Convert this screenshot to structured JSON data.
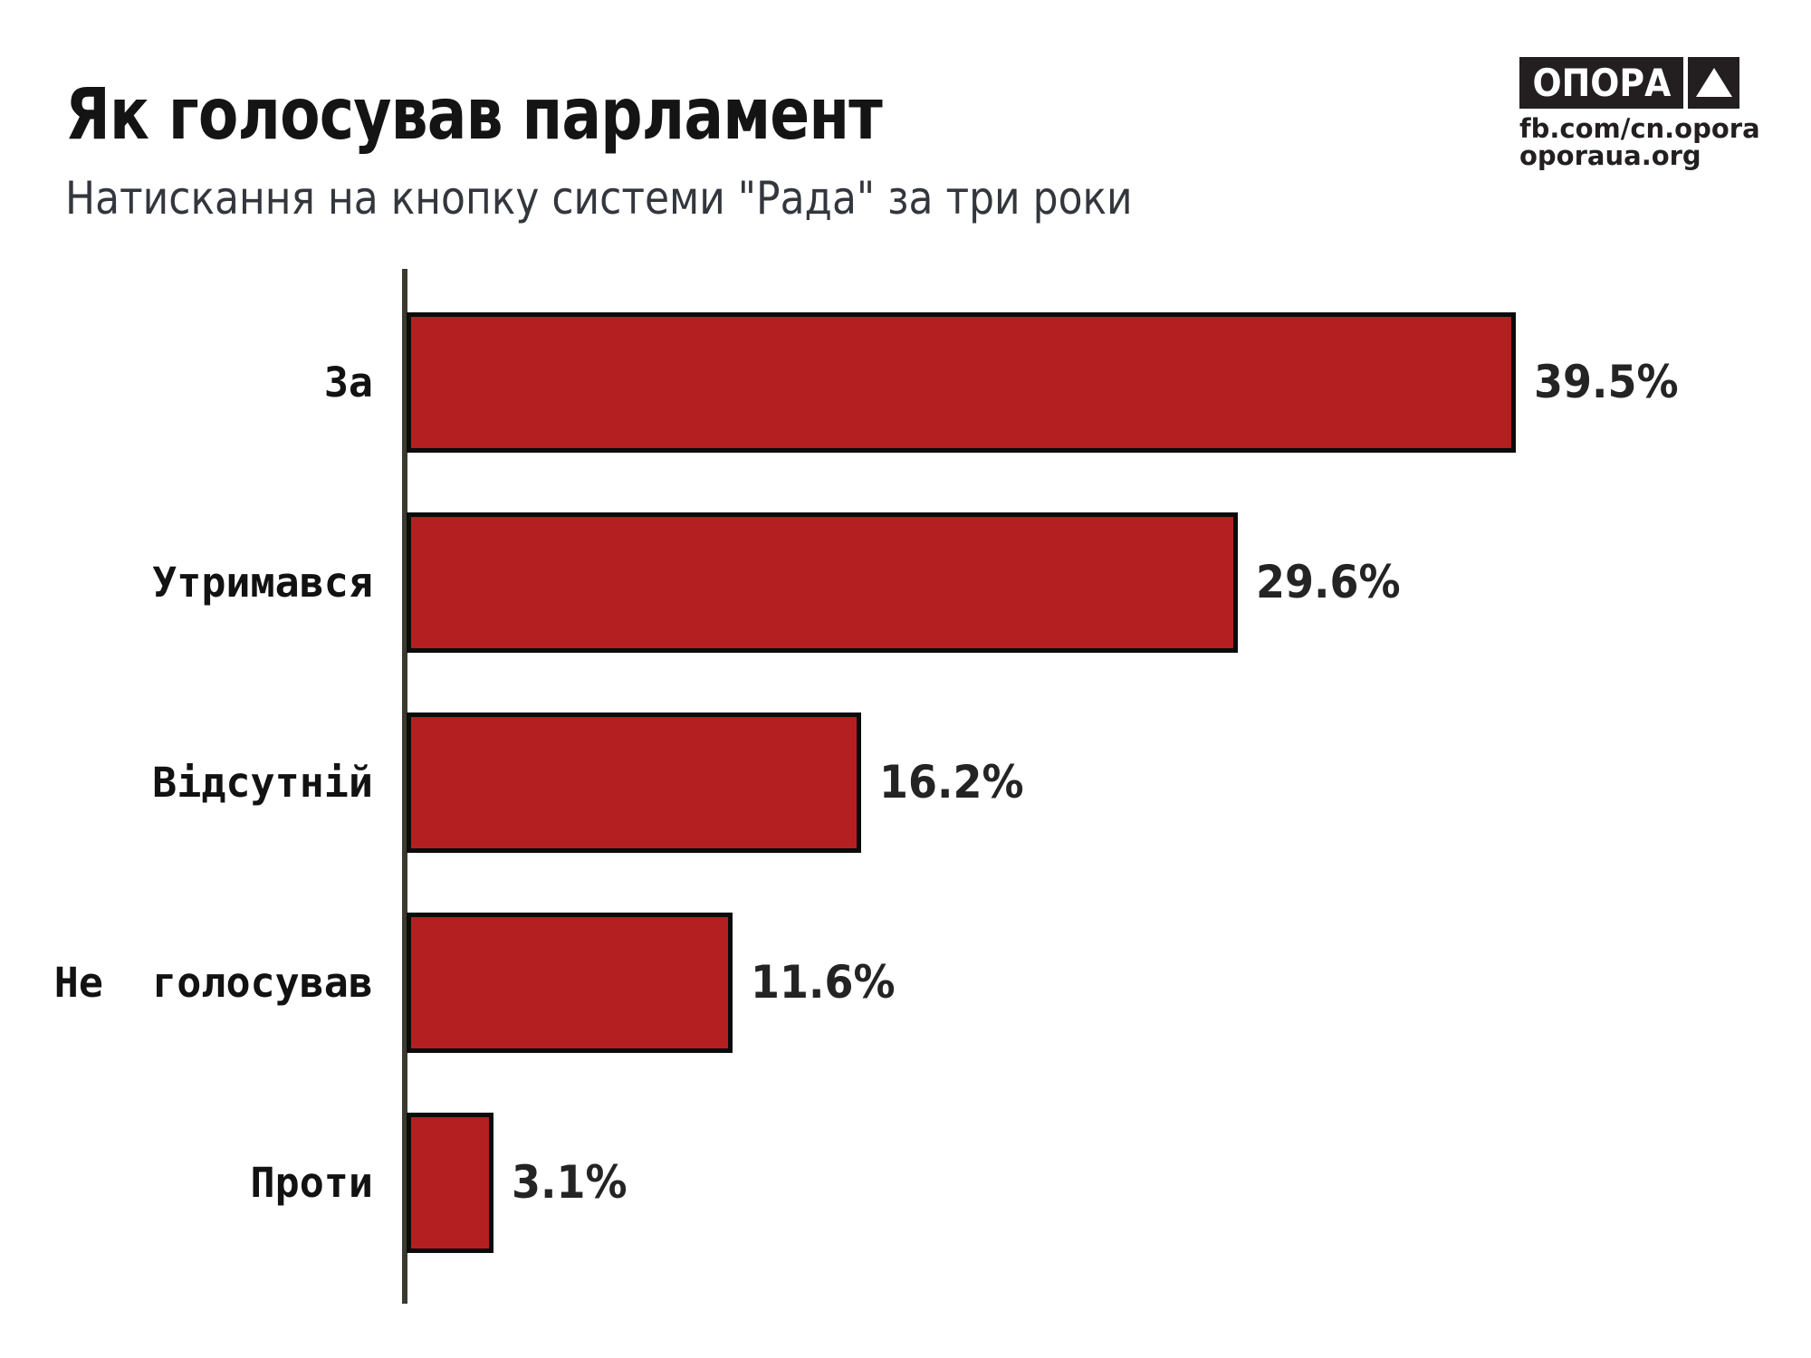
{
  "header": {
    "title": "Як голосував парламент",
    "subtitle": "Натискання на кнопку системи \"Рада\" за три роки"
  },
  "logo": {
    "wordmark": "ОПОРА",
    "triangle_icon": "up-triangle",
    "facebook_url": "fb.com/cn.opora",
    "website_url": "oporaua.org"
  },
  "chart_data": {
    "type": "bar",
    "orientation": "horizontal",
    "title": "Як голосував парламент",
    "subtitle": "Натискання на кнопку системи \"Рада\" за три роки",
    "categories": [
      "За",
      "Утримався",
      "Відсутній",
      "Не  голосував",
      "Проти"
    ],
    "values": [
      39.5,
      29.6,
      16.2,
      11.6,
      3.1
    ],
    "value_labels": [
      "39.5%",
      "29.6%",
      "16.2%",
      "11.6%",
      "3.1%"
    ],
    "xlabel": "",
    "ylabel": "",
    "xlim": [
      0,
      40
    ],
    "grid": false,
    "legend": false,
    "colors": {
      "bar_fill": "#b41f22",
      "bar_border": "#0b0b0b",
      "axis_line": "#3a3a30",
      "category_text": "#121212",
      "value_text": "#242424",
      "title_text": "#141414",
      "subtitle_text": "#33373d",
      "logo_background": "#231f20"
    }
  }
}
